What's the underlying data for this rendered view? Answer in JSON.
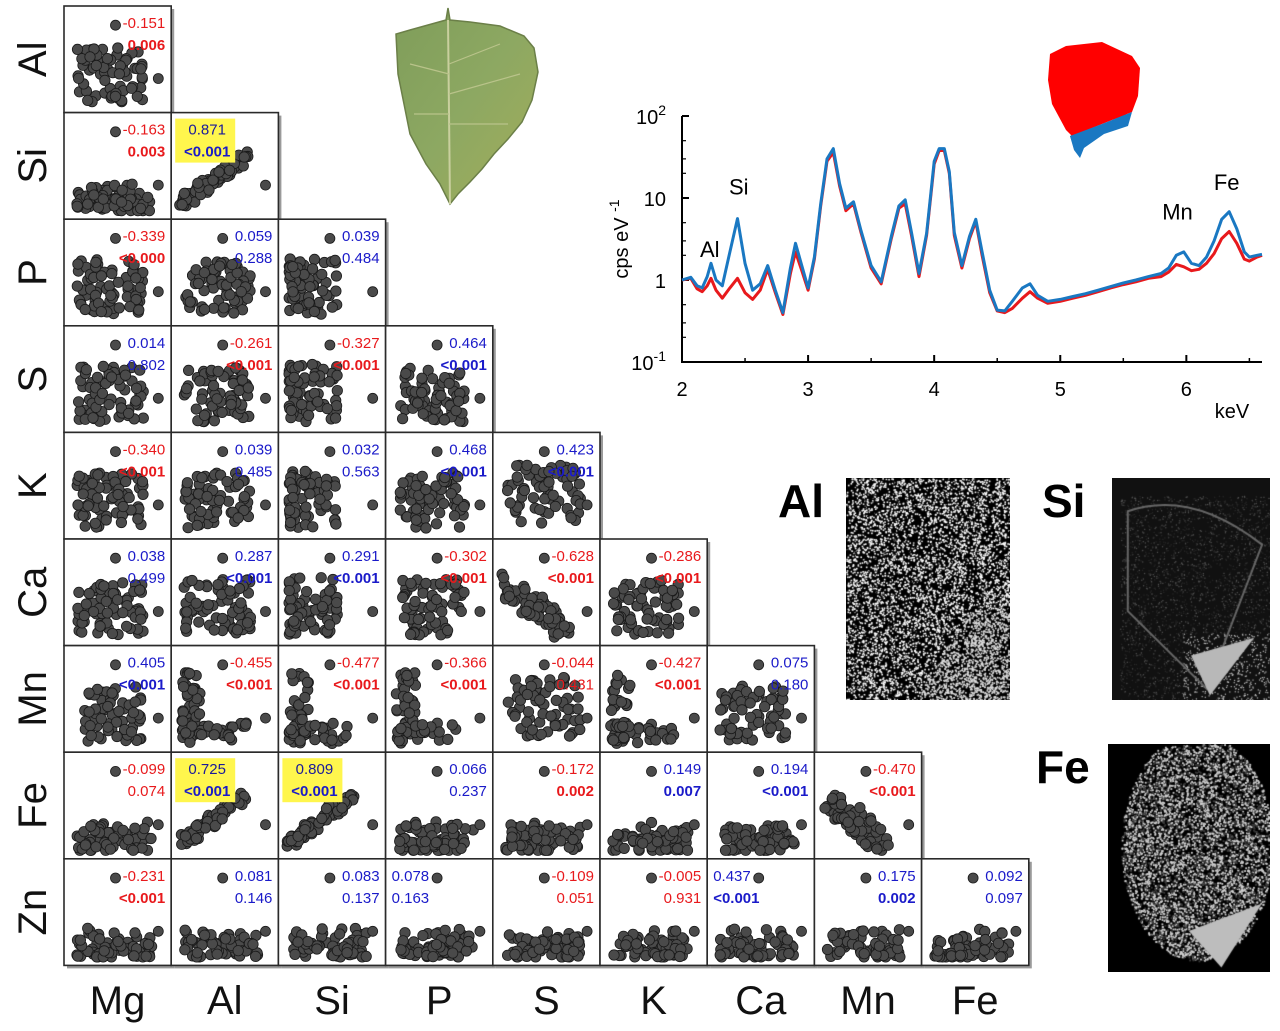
{
  "chart_data": [
    {
      "type": "scatter-matrix",
      "row_variables": [
        "Al",
        "Si",
        "P",
        "S",
        "K",
        "Ca",
        "Mn",
        "Fe",
        "Zn"
      ],
      "column_variables": [
        "Mg",
        "Al",
        "Si",
        "P",
        "S",
        "K",
        "Ca",
        "Mn",
        "Fe"
      ],
      "colors": {
        "negative": "#e8191c",
        "positive": "#1a1ac9",
        "highlight": "#fff64d"
      },
      "cells": [
        [
          {
            "r": "-0.151",
            "p": "0.006",
            "sign": "neg",
            "bold": true,
            "shape": "spread"
          }
        ],
        [
          {
            "r": "-0.163",
            "p": "0.003",
            "sign": "neg",
            "bold": true,
            "shape": "bottom"
          },
          {
            "r": "0.871",
            "p": "<0.001",
            "sign": "pos",
            "bold": true,
            "highlight": true,
            "shape": "linear"
          }
        ],
        [
          {
            "r": "-0.339",
            "p": "<0.000",
            "sign": "neg",
            "bold": true,
            "shape": "spread"
          },
          {
            "r": "0.059",
            "p": "0.288",
            "sign": "pos",
            "bold": false,
            "shape": "spread"
          },
          {
            "r": "0.039",
            "p": "0.484",
            "sign": "pos",
            "bold": false,
            "shape": "left"
          }
        ],
        [
          {
            "r": "0.014",
            "p": "0.802",
            "sign": "pos",
            "bold": false,
            "shape": "spread"
          },
          {
            "r": "-0.261",
            "p": "<0.001",
            "sign": "neg",
            "bold": true,
            "shape": "spread"
          },
          {
            "r": "-0.327",
            "p": "<0.001",
            "sign": "neg",
            "bold": true,
            "shape": "left"
          },
          {
            "r": "0.464",
            "p": "<0.001",
            "sign": "pos",
            "bold": true,
            "shape": "spread"
          }
        ],
        [
          {
            "r": "-0.340",
            "p": "<0.001",
            "sign": "neg",
            "bold": true,
            "shape": "spread"
          },
          {
            "r": "0.039",
            "p": "0.485",
            "sign": "pos",
            "bold": false,
            "shape": "spread"
          },
          {
            "r": "0.032",
            "p": "0.563",
            "sign": "pos",
            "bold": false,
            "shape": "left"
          },
          {
            "r": "0.468",
            "p": "<0.001",
            "sign": "pos",
            "bold": true,
            "shape": "spread"
          },
          {
            "r": "0.423",
            "p": "<0.001",
            "sign": "pos",
            "bold": true,
            "shape": "cloud"
          }
        ],
        [
          {
            "r": "0.038",
            "p": "0.499",
            "sign": "pos",
            "bold": false,
            "shape": "spread"
          },
          {
            "r": "0.287",
            "p": "<0.001",
            "sign": "pos",
            "bold": true,
            "shape": "spread"
          },
          {
            "r": "0.291",
            "p": "<0.001",
            "sign": "pos",
            "bold": true,
            "shape": "left"
          },
          {
            "r": "-0.302",
            "p": "<0.001",
            "sign": "neg",
            "bold": true,
            "shape": "spread"
          },
          {
            "r": "-0.628",
            "p": "<0.001",
            "sign": "neg",
            "bold": true,
            "shape": "decline"
          },
          {
            "r": "-0.286",
            "p": "<0.001",
            "sign": "neg",
            "bold": true,
            "shape": "spread"
          }
        ],
        [
          {
            "r": "0.405",
            "p": "<0.001",
            "sign": "pos",
            "bold": true,
            "shape": "spread"
          },
          {
            "r": "-0.455",
            "p": "<0.001",
            "sign": "neg",
            "bold": true,
            "shape": "lshape"
          },
          {
            "r": "-0.477",
            "p": "<0.001",
            "sign": "neg",
            "bold": true,
            "shape": "lshape"
          },
          {
            "r": "-0.366",
            "p": "<0.001",
            "sign": "neg",
            "bold": true,
            "shape": "lshape"
          },
          {
            "r": "-0.044",
            "p": "0.431",
            "sign": "neg",
            "bold": false,
            "shape": "cloud"
          },
          {
            "r": "-0.427",
            "p": "<0.001",
            "sign": "neg",
            "bold": true,
            "shape": "lshape"
          },
          {
            "r": "0.075",
            "p": "0.180",
            "sign": "pos",
            "bold": false,
            "shape": "spread"
          }
        ],
        [
          {
            "r": "-0.099",
            "p": "0.074",
            "sign": "neg",
            "bold": false,
            "shape": "bottom"
          },
          {
            "r": "0.725",
            "p": "<0.001",
            "sign": "pos",
            "bold": true,
            "highlight": true,
            "shape": "linear"
          },
          {
            "r": "0.809",
            "p": "<0.001",
            "sign": "pos",
            "bold": true,
            "highlight": true,
            "shape": "linear"
          },
          {
            "r": "0.066",
            "p": "0.237",
            "sign": "pos",
            "bold": false,
            "shape": "bottom"
          },
          {
            "r": "-0.172",
            "p": "0.002",
            "sign": "neg",
            "bold": true,
            "shape": "bottom"
          },
          {
            "r": "0.149",
            "p": "0.007",
            "sign": "pos",
            "bold": true,
            "shape": "bottom"
          },
          {
            "r": "0.194",
            "p": "<0.001",
            "sign": "pos",
            "bold": true,
            "shape": "bottom"
          },
          {
            "r": "-0.470",
            "p": "<0.001",
            "sign": "neg",
            "bold": true,
            "shape": "decline"
          }
        ],
        [
          {
            "r": "-0.231",
            "p": "<0.001",
            "sign": "neg",
            "bold": true,
            "shape": "bottom"
          },
          {
            "r": "0.081",
            "p": "0.146",
            "sign": "pos",
            "bold": false,
            "shape": "bottom"
          },
          {
            "r": "0.083",
            "p": "0.137",
            "sign": "pos",
            "bold": false,
            "shape": "bottom"
          },
          {
            "r": "0.078",
            "p": "0.163",
            "sign": "pos",
            "bold": false,
            "shape": "bottom",
            "textLeft": true
          },
          {
            "r": "-0.109",
            "p": "0.051",
            "sign": "neg",
            "bold": false,
            "shape": "bottom"
          },
          {
            "r": "-0.005",
            "p": "0.931",
            "sign": "neg",
            "bold": false,
            "shape": "bottom"
          },
          {
            "r": "0.437",
            "p": "<0.001",
            "sign": "pos",
            "bold": true,
            "shape": "bottom",
            "textLeft": true
          },
          {
            "r": "0.175",
            "p": "0.002",
            "sign": "pos",
            "bold": true,
            "shape": "bottom"
          },
          {
            "r": "0.092",
            "p": "0.097",
            "sign": "pos",
            "bold": false,
            "shape": "bottom"
          }
        ]
      ]
    },
    {
      "type": "line",
      "xlabel": "keV",
      "ylabel": "cps eV",
      "ylabel_exp": "-1",
      "xlim": [
        2,
        6.6
      ],
      "ylim": [
        0.1,
        100
      ],
      "y_scale": "log",
      "x_ticks": [
        "2",
        "3",
        "4",
        "5",
        "6"
      ],
      "y_ticks": [
        {
          "base": "10",
          "exp": "2",
          "value": 100
        },
        {
          "base": "10",
          "exp": "",
          "value": 10
        },
        {
          "base": "1",
          "exp": "",
          "value": 1
        },
        {
          "base": "10",
          "exp": "-1",
          "value": 0.1
        }
      ],
      "peak_labels": [
        {
          "text": "Al",
          "x": 2.22,
          "y": 1.9,
          "color": "#000000"
        },
        {
          "text": "Si",
          "x": 2.45,
          "y": 11,
          "color": "#000000"
        },
        {
          "text": "Mn",
          "x": 5.93,
          "y": 5.5,
          "color": "#999999"
        },
        {
          "text": "Fe",
          "x": 6.32,
          "y": 12.5,
          "color": "#000000"
        }
      ],
      "series": [
        {
          "color": "#e8191c",
          "x": [
            2.0,
            2.07,
            2.12,
            2.16,
            2.2,
            2.23,
            2.27,
            2.32,
            2.38,
            2.44,
            2.5,
            2.56,
            2.62,
            2.68,
            2.74,
            2.8,
            2.86,
            2.9,
            2.95,
            3.0,
            3.05,
            3.1,
            3.15,
            3.2,
            3.25,
            3.3,
            3.36,
            3.42,
            3.5,
            3.58,
            3.66,
            3.72,
            3.77,
            3.82,
            3.88,
            3.94,
            4.0,
            4.04,
            4.08,
            4.12,
            4.16,
            4.22,
            4.28,
            4.33,
            4.38,
            4.44,
            4.5,
            4.56,
            4.62,
            4.7,
            4.76,
            4.82,
            4.9,
            5.0,
            5.1,
            5.2,
            5.3,
            5.4,
            5.5,
            5.6,
            5.7,
            5.8,
            5.86,
            5.92,
            5.98,
            6.04,
            6.1,
            6.16,
            6.22,
            6.28,
            6.34,
            6.4,
            6.46,
            6.5,
            6.56,
            6.6
          ],
          "y": [
            1.0,
            1.05,
            0.78,
            0.72,
            0.85,
            1.05,
            0.75,
            0.6,
            0.8,
            1.05,
            0.7,
            0.58,
            0.75,
            1.35,
            0.7,
            0.38,
            1.2,
            2.2,
            1.3,
            0.75,
            1.8,
            8,
            28,
            36,
            14,
            7,
            8.5,
            3.8,
            1.4,
            0.9,
            3.2,
            7.5,
            8.5,
            3.5,
            1.1,
            3.5,
            26,
            38,
            38,
            20,
            3.5,
            1.4,
            3.2,
            5.2,
            2,
            0.7,
            0.42,
            0.4,
            0.45,
            0.6,
            0.72,
            0.6,
            0.52,
            0.55,
            0.6,
            0.65,
            0.72,
            0.8,
            0.88,
            0.95,
            1.05,
            1.1,
            1.25,
            1.55,
            1.45,
            1.3,
            1.35,
            1.6,
            2.1,
            3.2,
            3.9,
            2.8,
            1.8,
            1.7,
            1.9,
            2.0
          ]
        },
        {
          "color": "#1a78c2",
          "x": [
            2.0,
            2.07,
            2.12,
            2.16,
            2.2,
            2.23,
            2.27,
            2.32,
            2.38,
            2.44,
            2.5,
            2.56,
            2.62,
            2.68,
            2.74,
            2.8,
            2.86,
            2.9,
            2.95,
            3.0,
            3.05,
            3.1,
            3.15,
            3.2,
            3.25,
            3.3,
            3.36,
            3.42,
            3.5,
            3.58,
            3.66,
            3.72,
            3.77,
            3.82,
            3.88,
            3.94,
            4.0,
            4.04,
            4.08,
            4.12,
            4.16,
            4.22,
            4.28,
            4.33,
            4.38,
            4.44,
            4.5,
            4.56,
            4.62,
            4.7,
            4.76,
            4.82,
            4.9,
            5.0,
            5.1,
            5.2,
            5.3,
            5.4,
            5.5,
            5.6,
            5.7,
            5.8,
            5.86,
            5.92,
            5.98,
            6.04,
            6.1,
            6.16,
            6.22,
            6.28,
            6.34,
            6.4,
            6.46,
            6.5,
            6.56,
            6.6
          ],
          "y": [
            1.0,
            1.08,
            0.85,
            0.8,
            1.1,
            1.6,
            1.0,
            0.85,
            2.2,
            5.6,
            1.6,
            0.75,
            0.9,
            1.5,
            0.75,
            0.4,
            1.4,
            2.8,
            1.5,
            0.8,
            1.9,
            8.5,
            30,
            40,
            15,
            7.5,
            9,
            4,
            1.5,
            0.95,
            3.4,
            8,
            9.5,
            3.8,
            1.2,
            3.7,
            28,
            40,
            40,
            21,
            3.8,
            1.5,
            3.4,
            5.5,
            2.2,
            0.75,
            0.43,
            0.42,
            0.55,
            0.8,
            0.9,
            0.65,
            0.55,
            0.58,
            0.63,
            0.68,
            0.75,
            0.83,
            0.92,
            1.0,
            1.1,
            1.2,
            1.4,
            2.0,
            2.2,
            1.6,
            1.5,
            1.9,
            3.0,
            5.5,
            6.8,
            4.2,
            2.2,
            1.9,
            2.0,
            2.05
          ]
        }
      ]
    }
  ],
  "maps": [
    {
      "label": "Al"
    },
    {
      "label": "Si"
    },
    {
      "label": "Fe"
    }
  ]
}
